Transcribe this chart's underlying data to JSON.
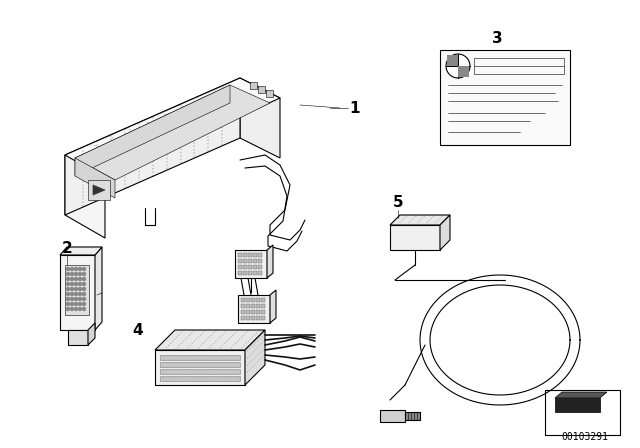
{
  "bg_color": "#ffffff",
  "line_color": "#000000",
  "diagram_id": "00103291",
  "lw": 0.8,
  "tlw": 0.4,
  "part1_label": "1",
  "part2_label": "2",
  "part3_label": "3",
  "part4_label": "4",
  "part5_label": "5"
}
